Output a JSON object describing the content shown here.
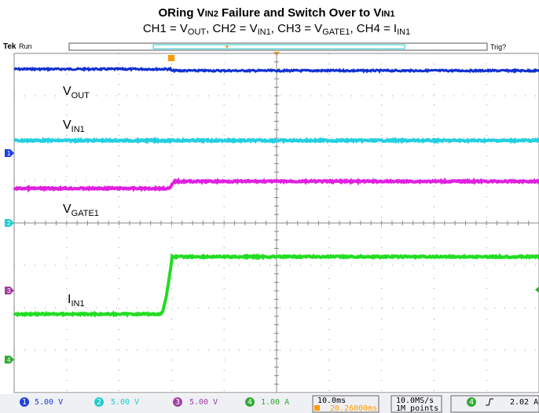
{
  "title": {
    "parts": [
      "ORing V",
      "IN2",
      " Failure and Switch Over to V",
      "IN1"
    ]
  },
  "subtitle": {
    "parts": [
      "CH1 = V",
      "OUT",
      ", CH2 = V",
      "IN1",
      ", CH3 = V",
      "GATE1",
      ", CH4 = I",
      "IN1"
    ]
  },
  "header": {
    "brand": "Tek",
    "status": "Run",
    "trigger": "Trig?"
  },
  "traces": [
    {
      "label": "V",
      "sub": "OUT"
    },
    {
      "label": "V",
      "sub": "IN1"
    },
    {
      "label": "V",
      "sub": "GATE1"
    },
    {
      "label": "I",
      "sub": "IN1"
    }
  ],
  "markers": [
    "1",
    "2",
    "3",
    "4"
  ],
  "status_bar": {
    "channels": [
      {
        "id": "1",
        "scale": "5.00 V"
      },
      {
        "id": "2",
        "scale": "5.00 V"
      },
      {
        "id": "3",
        "scale": "5.00 V"
      },
      {
        "id": "4",
        "scale": "1.00 A"
      }
    ],
    "timebase": "10.0ms",
    "position": "20.26000ms",
    "sample_rate": "10.0MS/s",
    "record": "1M points",
    "trigger_source": "4",
    "trigger_level": "2.02 A"
  }
}
